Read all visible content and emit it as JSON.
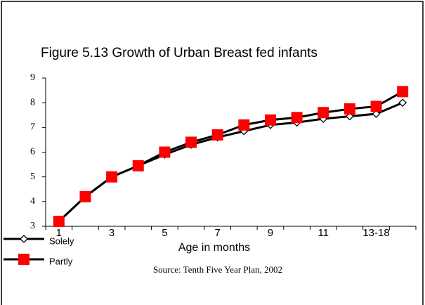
{
  "chart_data": {
    "type": "line",
    "title": "Figure 5.13 Growth of Urban Breast fed infants",
    "x_label": "Age in months",
    "source": "Source: Tenth Five Year Plan, 2002",
    "categories": [
      "1",
      null,
      "3",
      null,
      "5",
      null,
      "7",
      null,
      "9",
      null,
      "11",
      null,
      "13-18",
      null
    ],
    "series": [
      {
        "name": "Solely",
        "color": "#000000",
        "marker": "diamond",
        "values": [
          3.2,
          4.2,
          5.0,
          5.45,
          5.9,
          6.3,
          6.6,
          6.85,
          7.1,
          7.2,
          7.35,
          7.45,
          7.55,
          8.0
        ]
      },
      {
        "name": "Partly",
        "color": "#ff0000",
        "marker": "square",
        "values": [
          3.2,
          4.2,
          5.0,
          5.45,
          6.0,
          6.4,
          6.7,
          7.1,
          7.3,
          7.4,
          7.6,
          7.75,
          7.85,
          8.45
        ]
      }
    ],
    "ylim": [
      3,
      9
    ],
    "yticks": [
      3,
      4,
      5,
      6,
      7,
      8,
      9
    ],
    "grid": false,
    "legend": "bottom-left"
  }
}
